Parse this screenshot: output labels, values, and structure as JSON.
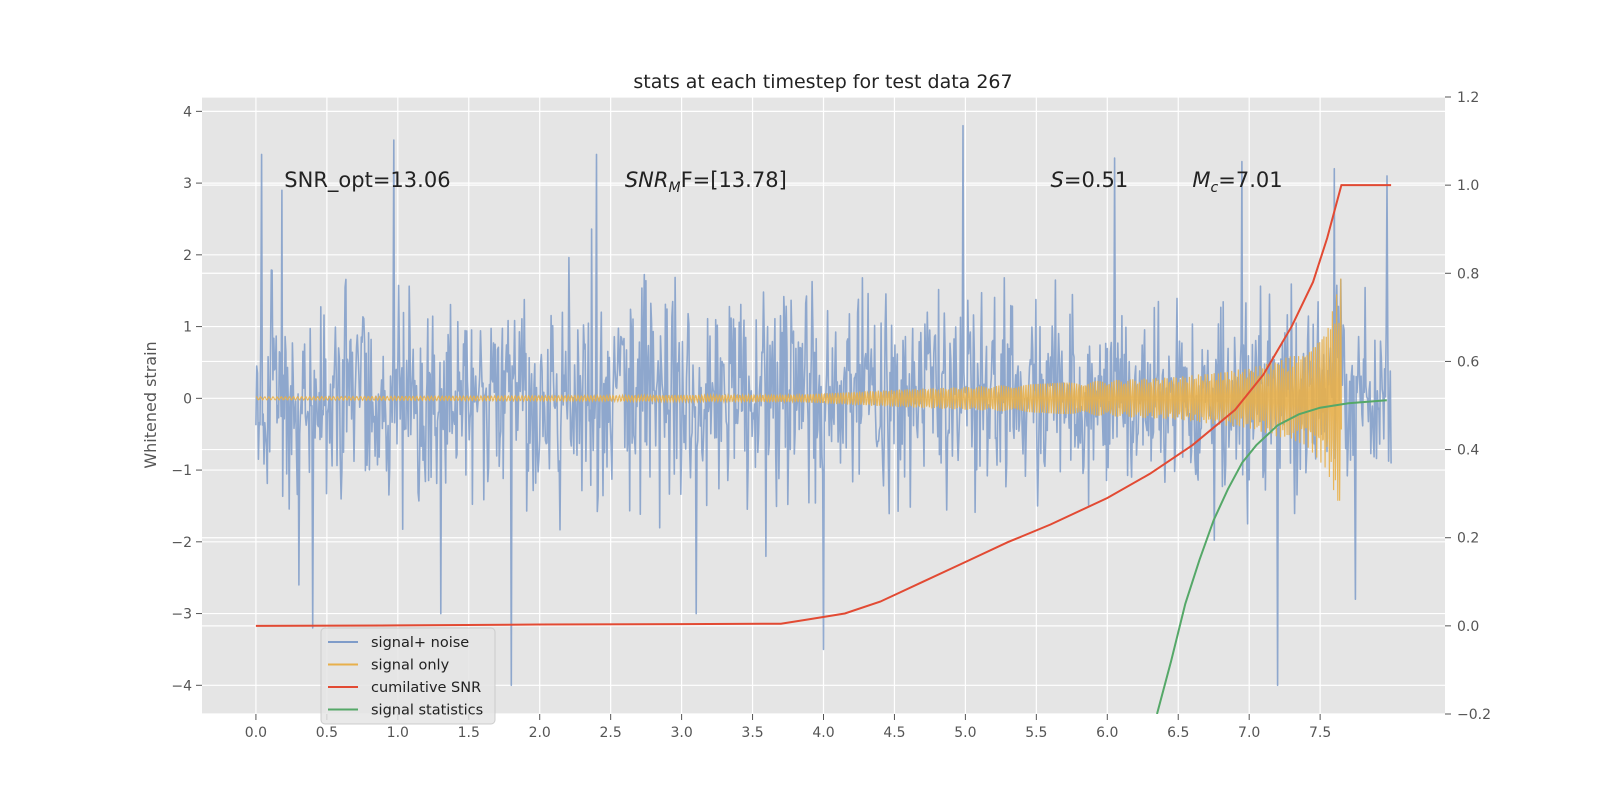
{
  "chart_data": {
    "type": "line",
    "title": "stats at each timestep for test data 267",
    "ylabel": "Whitened strain",
    "xlim": [
      -0.38,
      8.38
    ],
    "ylim": [
      -4.4,
      4.2
    ],
    "ylim_right": [
      -0.2,
      1.2
    ],
    "x_ticks": [
      "0.0",
      "0.5",
      "1.0",
      "1.5",
      "2.0",
      "2.5",
      "3.0",
      "3.5",
      "4.0",
      "4.5",
      "5.0",
      "5.5",
      "6.0",
      "6.5",
      "7.0",
      "7.5"
    ],
    "x_tick_values": [
      0.0,
      0.5,
      1.0,
      1.5,
      2.0,
      2.5,
      3.0,
      3.5,
      4.0,
      4.5,
      5.0,
      5.5,
      6.0,
      6.5,
      7.0,
      7.5
    ],
    "y_ticks": [
      "4",
      "3",
      "2",
      "1",
      "0",
      "−1",
      "−2",
      "−3",
      "−4"
    ],
    "y_tick_values": [
      4,
      3,
      2,
      1,
      0,
      -1,
      -2,
      -3,
      -4
    ],
    "y_ticks_right": [
      "1.2",
      "1.0",
      "0.8",
      "0.6",
      "0.4",
      "0.2",
      "0.0",
      "−0.2"
    ],
    "y_tick_values_right": [
      1.2,
      1.0,
      0.8,
      0.6,
      0.4,
      0.2,
      0.0,
      -0.2
    ],
    "grid": true,
    "legend_position": "lower-left",
    "annotations": [
      {
        "prefix": "SNR_opt=13.06",
        "italic": "",
        "sub": "",
        "suffix": "",
        "x": 0.2,
        "y": 3.0
      },
      {
        "prefix": "",
        "italic": "SNR",
        "sub": "M",
        "suffix": "F=[13.78]",
        "x": 2.6,
        "y": 3.0
      },
      {
        "prefix": "",
        "italic": "S",
        "sub": "",
        "suffix": "=0.51",
        "x": 5.6,
        "y": 3.0
      },
      {
        "prefix": "",
        "italic": "M",
        "sub": "c",
        "suffix": "=7.01",
        "x": 6.6,
        "y": 3.0
      }
    ],
    "series": [
      {
        "name": "signal+ noise",
        "color": "#7f9cc9",
        "axis": "left",
        "kind": "noise",
        "x_range": [
          0.0,
          8.0
        ],
        "typical_amplitude": 1.3,
        "peaks": [
          {
            "x": 0.04,
            "y": 3.4
          },
          {
            "x": 0.18,
            "y": 2.9
          },
          {
            "x": 0.3,
            "y": -2.6
          },
          {
            "x": 0.4,
            "y": -3.2
          },
          {
            "x": 0.97,
            "y": 3.6
          },
          {
            "x": 1.3,
            "y": -3.0
          },
          {
            "x": 1.8,
            "y": -4.0
          },
          {
            "x": 2.4,
            "y": 3.4
          },
          {
            "x": 3.1,
            "y": -3.0
          },
          {
            "x": 4.0,
            "y": -3.5
          },
          {
            "x": 4.98,
            "y": 3.8
          },
          {
            "x": 6.05,
            "y": 3.35
          },
          {
            "x": 6.95,
            "y": 3.3
          },
          {
            "x": 7.2,
            "y": -4.0
          },
          {
            "x": 7.6,
            "y": 3.2
          },
          {
            "x": 7.75,
            "y": -2.8
          },
          {
            "x": 7.97,
            "y": 3.1
          }
        ]
      },
      {
        "name": "signal only",
        "color": "#e8b04b",
        "axis": "left",
        "kind": "chirp",
        "x_range": [
          0.0,
          7.65
        ],
        "envelope": [
          [
            0.0,
            0.02
          ],
          [
            3.8,
            0.05
          ],
          [
            4.5,
            0.12
          ],
          [
            5.5,
            0.2
          ],
          [
            6.5,
            0.3
          ],
          [
            7.0,
            0.42
          ],
          [
            7.4,
            0.65
          ],
          [
            7.55,
            1.0
          ],
          [
            7.65,
            1.7
          ]
        ]
      },
      {
        "name": "cumilative SNR",
        "color": "#e24a33",
        "axis": "right",
        "x": [
          0.0,
          1.0,
          2.0,
          3.0,
          3.7,
          3.9,
          4.15,
          4.4,
          4.7,
          5.0,
          5.3,
          5.6,
          6.0,
          6.3,
          6.6,
          6.9,
          7.1,
          7.3,
          7.45,
          7.55,
          7.65,
          7.66,
          8.0
        ],
        "y": [
          0.0,
          0.001,
          0.003,
          0.004,
          0.005,
          0.015,
          0.028,
          0.055,
          0.1,
          0.145,
          0.19,
          0.23,
          0.29,
          0.345,
          0.41,
          0.49,
          0.57,
          0.68,
          0.78,
          0.88,
          1.0,
          1.0,
          1.0
        ]
      },
      {
        "name": "signal statistics",
        "color": "#55a868",
        "axis": "right",
        "x": [
          6.35,
          6.45,
          6.55,
          6.65,
          6.75,
          6.85,
          6.95,
          7.05,
          7.2,
          7.35,
          7.5,
          7.7,
          7.97
        ],
        "y": [
          -0.2,
          -0.08,
          0.05,
          0.15,
          0.24,
          0.31,
          0.37,
          0.41,
          0.455,
          0.48,
          0.495,
          0.505,
          0.512
        ]
      }
    ]
  }
}
